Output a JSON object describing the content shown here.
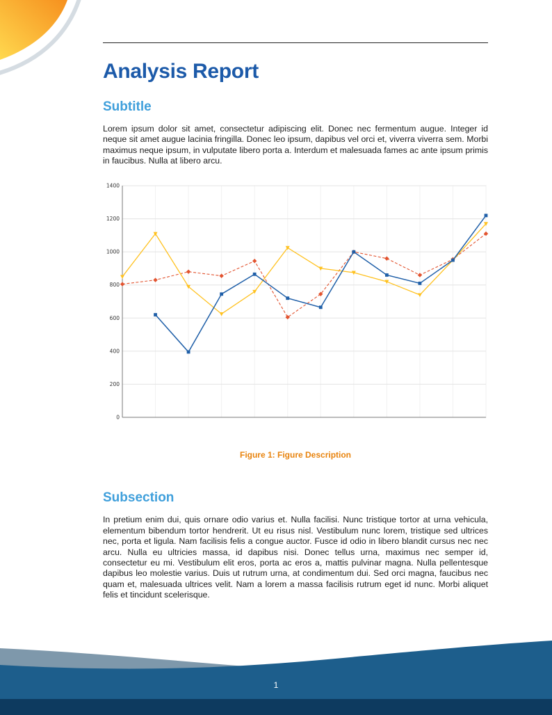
{
  "page": {
    "number": "1"
  },
  "document": {
    "title": "Analysis Report",
    "sections": [
      {
        "heading": "Subtitle",
        "paragraph": "Lorem ipsum dolor sit amet, consectetur adipiscing elit. Donec nec fermentum augue. Integer id neque sit amet augue lacinia fringilla. Donec leo ipsum, dapibus vel orci et, viverra viverra sem. Morbi maximus neque ipsum, in vulputate libero porta a. Interdum et malesuada fames ac ante ipsum primis in faucibus. Nulla at libero arcu."
      },
      {
        "heading": "Subsection",
        "paragraph": "In pretium enim dui, quis ornare odio varius et. Nulla facilisi. Nunc tristique tortor at urna vehicula, elementum bibendum tortor hendrerit. Ut eu risus nisl. Vestibulum nunc lorem, tristique sed ultrices nec, porta et ligula. Nam facilisis felis a congue auctor. Fusce id odio in libero blandit cursus nec nec arcu. Nulla eu ultricies massa, id dapibus nisi. Donec tellus urna, maximus nec semper id, consectetur eu mi. Vestibulum elit eros, porta ac eros a, mattis pulvinar magna. Nulla pellentesque dapibus leo molestie varius. Duis ut rutrum urna, at condimentum dui. Sed orci magna, faucibus nec quam et, malesuada ultrices velit. Nam a lorem a massa facilisis rutrum eget id nunc. Morbi aliquet felis et tincidunt scelerisque."
      }
    ],
    "figure": {
      "caption_label": "Figure 1:",
      "caption_text": "Figure Description"
    }
  },
  "chart_data": {
    "type": "line",
    "x": [
      0,
      1,
      2,
      3,
      4,
      5,
      6,
      7,
      8,
      9,
      10,
      11
    ],
    "series": [
      {
        "name": "blue",
        "color": "#1f5fa8",
        "marker": "square",
        "dashed": false,
        "width": 1.5,
        "values": [
          null,
          620,
          395,
          745,
          865,
          720,
          665,
          1000,
          860,
          810,
          950,
          1220
        ]
      },
      {
        "name": "yellow",
        "color": "#ffc11e",
        "marker": "triangle",
        "dashed": false,
        "width": 1.3,
        "values": [
          850,
          1110,
          790,
          625,
          760,
          1025,
          900,
          875,
          820,
          740,
          950,
          1170
        ]
      },
      {
        "name": "red-dashed",
        "color": "#e2532f",
        "marker": "diamond",
        "dashed": true,
        "width": 1.1,
        "values": [
          805,
          830,
          880,
          855,
          945,
          605,
          745,
          1000,
          960,
          860,
          955,
          1110
        ]
      }
    ],
    "title": "",
    "xlabel": "",
    "ylabel": "",
    "ylim": [
      0,
      1400
    ],
    "yticks": [
      0,
      200,
      400,
      600,
      800,
      1000,
      1200,
      1400
    ],
    "grid": true,
    "legend": "none"
  },
  "colors": {
    "title-blue": "#1c5aa9",
    "heading-blue": "#3f9fdb",
    "caption-orange": "#e8830d",
    "body-text": "#1b1b1b",
    "rule": "#222222",
    "footer-blue": "#1d5e8c",
    "footer-navy": "#0d3a5f",
    "footer-slate": "#7e98ab",
    "swoosh-yellow": "#ffd94f",
    "swoosh-orange": "#f6901e",
    "swoosh-gray": "#d5dce2"
  }
}
